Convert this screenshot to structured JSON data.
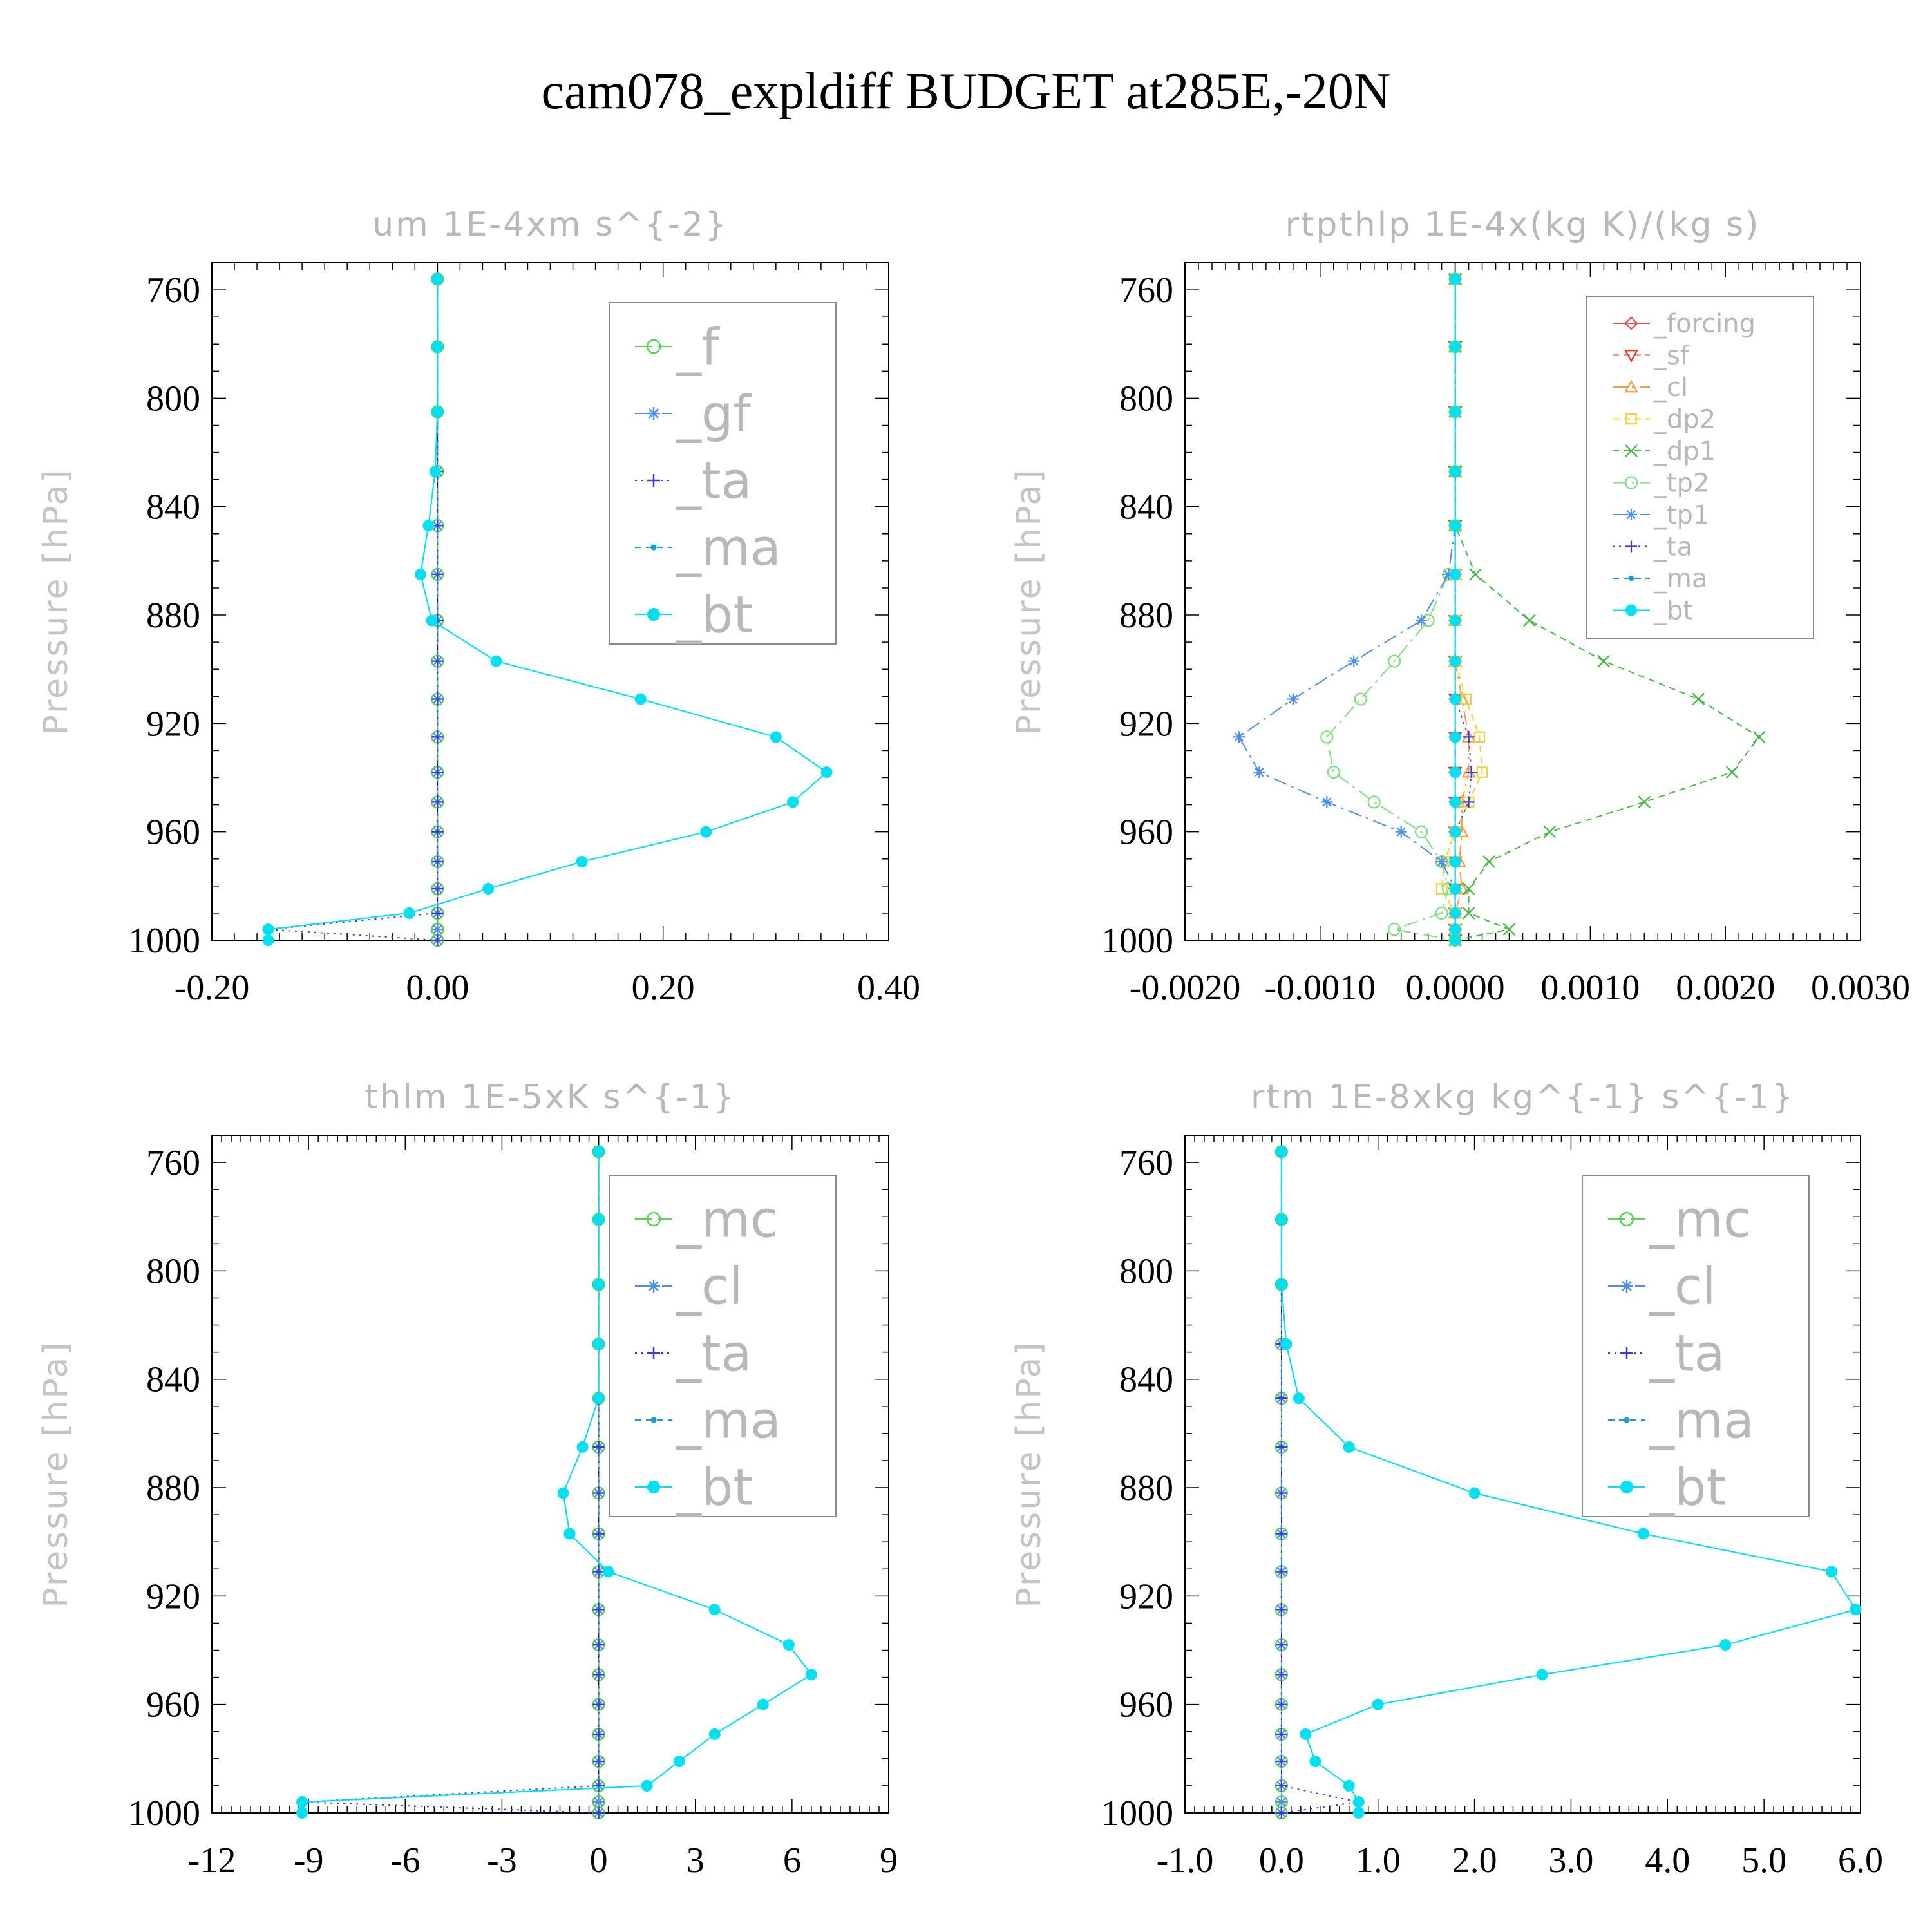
{
  "title": "cam078_expldiff  BUDGET at285E,-20N",
  "chart_data": [
    {
      "type": "line",
      "title": "um   1E-4xm s^{-2}",
      "ylabel": "Pressure [hPa]",
      "ylim": [
        1000,
        750
      ],
      "yticks": [
        760,
        800,
        840,
        880,
        920,
        960,
        1000
      ],
      "xlim": [
        -0.2,
        0.4
      ],
      "xticks": [
        -0.2,
        0.0,
        0.2,
        0.4
      ],
      "xtick_labels": [
        "-0.20",
        "0.00",
        "0.20",
        "0.40"
      ],
      "legend_position": "top-right",
      "legend_size": "large",
      "y": [
        756,
        781,
        805,
        827,
        847,
        865,
        882,
        897,
        911,
        925,
        938,
        949,
        960,
        971,
        981,
        990,
        996,
        1000
      ],
      "series": [
        {
          "name": "_f",
          "color": "#55d455",
          "marker": "circle",
          "dash": "long",
          "values": [
            0,
            0,
            0,
            0,
            0,
            0,
            0,
            0,
            0,
            0,
            0,
            0,
            0,
            0,
            0,
            0,
            0,
            0
          ]
        },
        {
          "name": "_gf",
          "color": "#4f8fe8",
          "marker": "star",
          "dash": "dashdot",
          "values": [
            0,
            0,
            0,
            0,
            0,
            0,
            0,
            0,
            0,
            0,
            0,
            0,
            0,
            0,
            0,
            0,
            0,
            0
          ]
        },
        {
          "name": "_ta",
          "color": "#3a3ad8",
          "marker": "plus",
          "dash": "dot",
          "values": [
            0,
            0,
            0,
            0,
            0,
            0,
            0,
            0,
            0,
            0,
            0,
            0,
            0,
            0,
            0,
            0,
            -0.15,
            0
          ]
        },
        {
          "name": "_ma",
          "color": "#1a9ad8",
          "marker": "dot",
          "dash": "dash",
          "values": [
            0,
            0,
            0,
            -0.002,
            -0.008,
            -0.015,
            -0.005,
            0.052,
            0.18,
            0.3,
            0.345,
            0.315,
            0.238,
            0.128,
            0.045,
            -0.025,
            -0.15,
            -0.15
          ]
        },
        {
          "name": "_bt",
          "color": "#00e0f0",
          "marker": "filled",
          "dash": "solid",
          "values": [
            0,
            0,
            0,
            -0.002,
            -0.008,
            -0.015,
            -0.005,
            0.052,
            0.18,
            0.3,
            0.345,
            0.315,
            0.238,
            0.128,
            0.045,
            -0.025,
            -0.15,
            -0.15
          ]
        }
      ]
    },
    {
      "type": "line",
      "title": "rtpthlp   1E-4x(kg K)/(kg s)",
      "ylabel": "Pressure [hPa]",
      "ylim": [
        1000,
        750
      ],
      "yticks": [
        760,
        800,
        840,
        880,
        920,
        960,
        1000
      ],
      "xlim": [
        -0.002,
        0.003
      ],
      "xticks": [
        -0.002,
        -0.001,
        0.0,
        0.001,
        0.002,
        0.003
      ],
      "xtick_labels": [
        "-0.0020",
        "-0.0010",
        "0.0000",
        "0.0010",
        "0.0020",
        "0.0030"
      ],
      "legend_position": "top-right",
      "legend_size": "small",
      "y": [
        756,
        781,
        805,
        827,
        847,
        865,
        882,
        897,
        911,
        925,
        938,
        949,
        960,
        971,
        981,
        990,
        996,
        1000
      ],
      "series": [
        {
          "name": "_forcing",
          "color": "#e05050",
          "marker": "diamond",
          "dash": "solid",
          "values": [
            0,
            0,
            0,
            0,
            0,
            0,
            0,
            0,
            0,
            0,
            0,
            0,
            0,
            0,
            0,
            0,
            0,
            0
          ]
        },
        {
          "name": "_sf",
          "color": "#e83030",
          "marker": "tri-down",
          "dash": "dash",
          "values": [
            0,
            0,
            0,
            0,
            0,
            0,
            0,
            0,
            0,
            0,
            0,
            0,
            0,
            0,
            0,
            0,
            0,
            0
          ]
        },
        {
          "name": "_cl",
          "color": "#f0a040",
          "marker": "tri-up",
          "dash": "dashdot",
          "values": [
            0,
            0,
            0,
            0,
            0,
            0,
            0,
            0,
            5e-05,
            0.0001,
            0.0001,
            5e-05,
            5e-05,
            3e-05,
            5e-05,
            0,
            0,
            0
          ]
        },
        {
          "name": "_dp2",
          "color": "#f0d040",
          "marker": "square",
          "dash": "dash",
          "values": [
            0,
            0,
            0,
            0,
            0,
            0,
            0,
            0,
            8e-05,
            0.00018,
            0.0002,
            0.0001,
            0,
            -8e-05,
            -0.0001,
            0,
            0,
            0
          ]
        },
        {
          "name": "_dp1",
          "color": "#45b845",
          "marker": "x",
          "dash": "dash",
          "values": [
            0,
            0,
            0,
            0,
            0,
            0.00015,
            0.00055,
            0.0011,
            0.0018,
            0.00225,
            0.00205,
            0.0014,
            0.0007,
            0.00025,
            0.0001,
            0.0001,
            0.0004,
            0
          ]
        },
        {
          "name": "_tp2",
          "color": "#80e080",
          "marker": "circle",
          "dash": "dashdot",
          "values": [
            0,
            0,
            0,
            0,
            0,
            -5e-05,
            -0.0002,
            -0.00045,
            -0.0007,
            -0.00095,
            -0.0009,
            -0.0006,
            -0.00025,
            -0.0001,
            -5e-05,
            -0.0001,
            -0.00045,
            0
          ]
        },
        {
          "name": "_tp1",
          "color": "#4f8fe8",
          "marker": "star",
          "dash": "dashdot",
          "values": [
            0,
            0,
            0,
            0,
            0,
            -5e-05,
            -0.00025,
            -0.00075,
            -0.0012,
            -0.0016,
            -0.00145,
            -0.00095,
            -0.0004,
            -0.0001,
            0,
            0,
            0,
            0
          ]
        },
        {
          "name": "_ta",
          "color": "#3a3ad8",
          "marker": "plus",
          "dash": "dot",
          "values": [
            0,
            0,
            0,
            0,
            0,
            0,
            0,
            0,
            0,
            0.0001,
            0.00012,
            0.0001,
            0,
            0,
            0,
            0,
            0,
            0
          ]
        },
        {
          "name": "_ma",
          "color": "#1a9ad8",
          "marker": "dot",
          "dash": "dash",
          "values": [
            0,
            0,
            0,
            0,
            0,
            0,
            0,
            0,
            0,
            0,
            0,
            0,
            0,
            0,
            0,
            0,
            0,
            0
          ]
        },
        {
          "name": "_bt",
          "color": "#00e0f0",
          "marker": "filled",
          "dash": "solid",
          "values": [
            0,
            0,
            0,
            0,
            0,
            0,
            0,
            0,
            0,
            0,
            0,
            0,
            0,
            0,
            0,
            0,
            0,
            0
          ]
        }
      ]
    },
    {
      "type": "line",
      "title": "thlm   1E-5xK s^{-1}",
      "ylabel": "Pressure [hPa]",
      "ylim": [
        1000,
        750
      ],
      "yticks": [
        760,
        800,
        840,
        880,
        920,
        960,
        1000
      ],
      "xlim": [
        -12,
        9
      ],
      "xticks": [
        -12,
        -9,
        -6,
        -3,
        0,
        3,
        6,
        9
      ],
      "xtick_labels": [
        "-12",
        "-9",
        "-6",
        "-3",
        "0",
        "3",
        "6",
        "9"
      ],
      "legend_position": "top-right",
      "legend_size": "large",
      "y": [
        756,
        781,
        805,
        827,
        847,
        865,
        882,
        897,
        911,
        925,
        938,
        949,
        960,
        971,
        981,
        990,
        996,
        1000
      ],
      "series": [
        {
          "name": "_mc",
          "color": "#55d455",
          "marker": "circle",
          "dash": "long",
          "values": [
            0,
            0,
            0,
            0,
            0,
            0,
            0,
            0,
            0,
            0,
            0,
            0,
            0,
            0,
            0,
            0,
            0,
            0
          ]
        },
        {
          "name": "_cl",
          "color": "#4f8fe8",
          "marker": "star",
          "dash": "dashdot",
          "values": [
            0,
            0,
            0,
            0,
            0,
            0,
            0,
            0,
            0,
            0,
            0,
            0,
            0,
            0,
            0,
            0,
            0,
            0
          ]
        },
        {
          "name": "_ta",
          "color": "#3a3ad8",
          "marker": "plus",
          "dash": "dot",
          "values": [
            0,
            0,
            0,
            0,
            0,
            0,
            0,
            0,
            0,
            0,
            0,
            0,
            0,
            0,
            0,
            0,
            -9.2,
            0
          ]
        },
        {
          "name": "_ma",
          "color": "#1a9ad8",
          "marker": "dot",
          "dash": "dash",
          "values": [
            0,
            0,
            0,
            0,
            0,
            -0.5,
            -1.1,
            -0.9,
            0.3,
            3.6,
            5.9,
            6.6,
            5.1,
            3.6,
            2.5,
            1.5,
            -9.2,
            -9.2
          ]
        },
        {
          "name": "_bt",
          "color": "#00e0f0",
          "marker": "filled",
          "dash": "solid",
          "values": [
            0,
            0,
            0,
            0,
            0,
            -0.5,
            -1.1,
            -0.9,
            0.3,
            3.6,
            5.9,
            6.6,
            5.1,
            3.6,
            2.5,
            1.5,
            -9.2,
            -9.2
          ]
        }
      ]
    },
    {
      "type": "line",
      "title": "rtm   1E-8xkg kg^{-1} s^{-1}",
      "ylabel": "Pressure [hPa]",
      "ylim": [
        1000,
        750
      ],
      "yticks": [
        760,
        800,
        840,
        880,
        920,
        960,
        1000
      ],
      "xlim": [
        -1.0,
        6.0
      ],
      "xticks": [
        -1,
        0,
        1,
        2,
        3,
        4,
        5,
        6
      ],
      "xtick_labels": [
        "-1.0",
        "0.0",
        "1.0",
        "2.0",
        "3.0",
        "4.0",
        "5.0",
        "6.0"
      ],
      "legend_position": "top-right",
      "legend_size": "large",
      "y": [
        756,
        781,
        805,
        827,
        847,
        865,
        882,
        897,
        911,
        925,
        938,
        949,
        960,
        971,
        981,
        990,
        996,
        1000
      ],
      "series": [
        {
          "name": "_mc",
          "color": "#55d455",
          "marker": "circle",
          "dash": "long",
          "values": [
            0,
            0,
            0,
            0,
            0,
            0,
            0,
            0,
            0,
            0,
            0,
            0,
            0,
            0,
            0,
            0,
            0,
            0
          ]
        },
        {
          "name": "_cl",
          "color": "#4f8fe8",
          "marker": "star",
          "dash": "dashdot",
          "values": [
            0,
            0,
            0,
            0,
            0,
            0,
            0,
            0,
            0,
            0,
            0,
            0,
            0,
            0,
            0,
            0,
            0,
            0
          ]
        },
        {
          "name": "_ta",
          "color": "#3a3ad8",
          "marker": "plus",
          "dash": "dot",
          "values": [
            0,
            0,
            0,
            0,
            0,
            0,
            0,
            0,
            0,
            0,
            0,
            0,
            0,
            0,
            0,
            0,
            0.8,
            0
          ]
        },
        {
          "name": "_ma",
          "color": "#1a9ad8",
          "marker": "dot",
          "dash": "dash",
          "values": [
            0,
            0,
            0,
            0.05,
            0.18,
            0.7,
            2.0,
            3.75,
            5.7,
            5.95,
            4.6,
            2.7,
            1.0,
            0.25,
            0.35,
            0.7,
            0.8,
            0.8
          ]
        },
        {
          "name": "_bt",
          "color": "#00e0f0",
          "marker": "filled",
          "dash": "solid",
          "values": [
            0,
            0,
            0,
            0.05,
            0.18,
            0.7,
            2.0,
            3.75,
            5.7,
            5.95,
            4.6,
            2.7,
            1.0,
            0.25,
            0.35,
            0.7,
            0.8,
            0.8
          ]
        }
      ]
    }
  ]
}
